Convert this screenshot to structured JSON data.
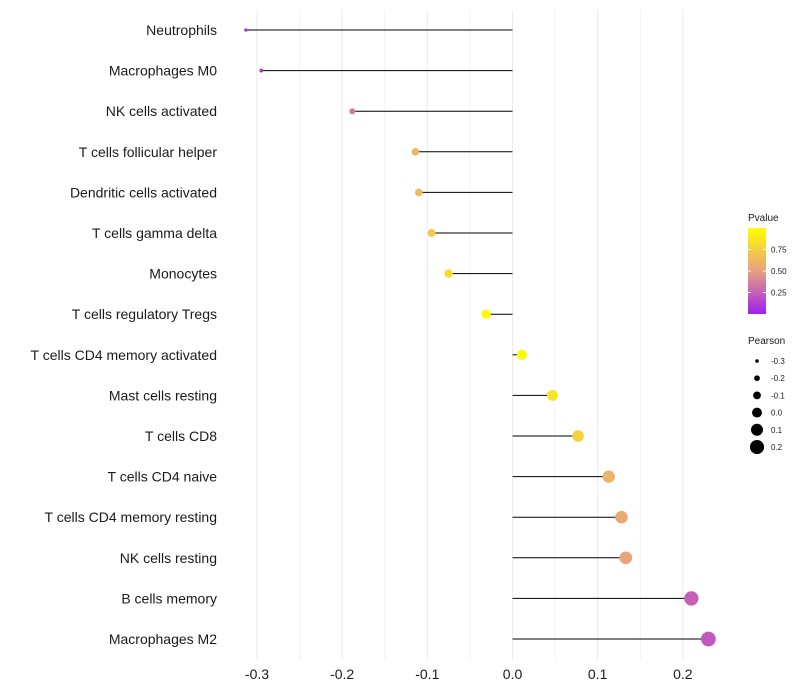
{
  "chart_data": {
    "type": "lollipop",
    "title": "",
    "xlabel": "",
    "ylabel": "",
    "xlim": [
      -0.33,
      0.25
    ],
    "x_ticks": [
      -0.3,
      -0.2,
      -0.1,
      0.0,
      0.1,
      0.2
    ],
    "x_tick_labels": [
      "-0.3",
      "-0.2",
      "-0.1",
      "0.0",
      "0.1",
      "0.2"
    ],
    "grid": true,
    "baseline": 0.0,
    "categories": [
      "Neutrophils",
      "Macrophages M0",
      "NK cells activated",
      "T cells follicular helper",
      "Dendritic cells activated",
      "T cells gamma delta",
      "Monocytes",
      "T cells regulatory  Tregs ",
      "T cells CD4 memory activated",
      "Mast cells resting",
      "T cells CD8",
      "T cells CD4 naive",
      "T cells CD4 memory resting",
      "NK cells resting",
      "B cells memory",
      "Macrophages M2"
    ],
    "pearson": [
      -0.313,
      -0.295,
      -0.188,
      -0.114,
      -0.11,
      -0.095,
      -0.075,
      -0.031,
      0.011,
      0.047,
      0.077,
      0.113,
      0.128,
      0.133,
      0.21,
      0.23
    ],
    "pvalue": [
      0.05,
      0.08,
      0.35,
      0.62,
      0.63,
      0.72,
      0.82,
      0.98,
      0.97,
      0.85,
      0.75,
      0.6,
      0.55,
      0.52,
      0.25,
      0.22
    ],
    "legend": {
      "color": {
        "title": "Pvalue",
        "ticks": [
          "0.25",
          "0.50",
          "0.75"
        ],
        "tick_values": [
          0.25,
          0.5,
          0.75
        ],
        "range": [
          0.0,
          1.0
        ],
        "low_color": "#A020F0",
        "mid_color": "#E8A080",
        "high_color": "#FFFF00"
      },
      "size": {
        "title": "Pearson",
        "labels": [
          "-0.3",
          "-0.2",
          "-0.1",
          "0.0",
          "0.1",
          "0.2"
        ],
        "values": [
          -0.3,
          -0.2,
          -0.1,
          0.0,
          0.1,
          0.2
        ]
      }
    }
  }
}
